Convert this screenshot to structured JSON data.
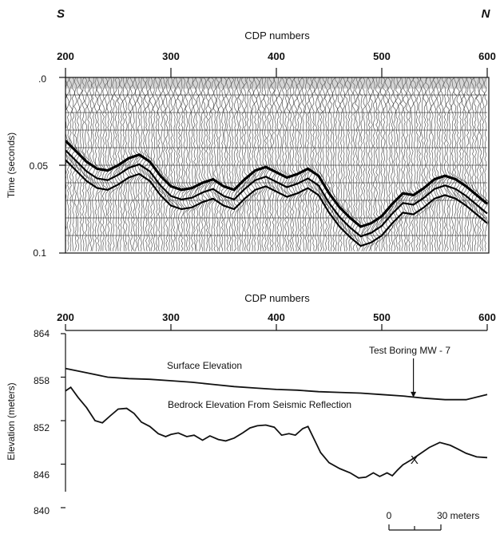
{
  "direction_left": "S",
  "direction_right": "N",
  "chart_data": [
    {
      "type": "heatmap",
      "xlabel": "CDP numbers",
      "ylabel": "Time (seconds)",
      "xlim": [
        200,
        600
      ],
      "ylim": [
        0.0,
        0.1
      ],
      "x_ticks": [
        "200",
        "300",
        "400",
        "500",
        "600"
      ],
      "y_ticks": [
        ".0",
        "0.05",
        "0.1"
      ],
      "reflector": {
        "x": [
          200,
          210,
          220,
          230,
          240,
          250,
          260,
          270,
          280,
          290,
          300,
          310,
          320,
          330,
          340,
          350,
          360,
          370,
          380,
          390,
          400,
          410,
          420,
          430,
          440,
          450,
          460,
          470,
          480,
          490,
          500,
          510,
          520,
          530,
          540,
          550,
          560,
          570,
          580,
          590,
          600
        ],
        "t": [
          0.036,
          0.042,
          0.048,
          0.052,
          0.053,
          0.05,
          0.046,
          0.044,
          0.048,
          0.056,
          0.062,
          0.064,
          0.063,
          0.06,
          0.058,
          0.062,
          0.064,
          0.058,
          0.053,
          0.051,
          0.054,
          0.057,
          0.055,
          0.052,
          0.056,
          0.066,
          0.074,
          0.08,
          0.085,
          0.083,
          0.079,
          0.072,
          0.066,
          0.067,
          0.063,
          0.058,
          0.056,
          0.058,
          0.062,
          0.067,
          0.072
        ]
      }
    },
    {
      "type": "line",
      "xlabel": "CDP numbers",
      "ylabel": "Elevation (meters)",
      "xlim": [
        200,
        600
      ],
      "ylim": [
        840,
        864
      ],
      "x_ticks": [
        "200",
        "300",
        "400",
        "500",
        "600"
      ],
      "y_ticks": [
        "864",
        "858",
        "852",
        "846",
        "840"
      ],
      "series": [
        {
          "name": "Surface Elevation",
          "x": [
            200,
            220,
            240,
            260,
            280,
            300,
            320,
            340,
            360,
            380,
            400,
            420,
            440,
            460,
            480,
            500,
            520,
            540,
            560,
            580,
            600
          ],
          "y": [
            859.2,
            858.6,
            858.0,
            857.8,
            857.7,
            857.5,
            857.3,
            857.0,
            856.7,
            856.5,
            856.3,
            856.2,
            856.0,
            855.9,
            855.8,
            855.6,
            855.4,
            855.1,
            854.9,
            854.9,
            855.6
          ]
        },
        {
          "name": "Bedrock Elevation From Seismic Reflection",
          "x": [
            200,
            205,
            212,
            220,
            228,
            235,
            242,
            250,
            258,
            265,
            272,
            280,
            288,
            295,
            300,
            307,
            315,
            322,
            330,
            337,
            345,
            352,
            360,
            368,
            375,
            382,
            390,
            398,
            405,
            412,
            418,
            425,
            430,
            436,
            442,
            450,
            460,
            470,
            478,
            485,
            492,
            498,
            505,
            510,
            515,
            520,
            528,
            535,
            545,
            555,
            565,
            572,
            580,
            590,
            600
          ],
          "y": [
            856.1,
            856.6,
            855.2,
            853.8,
            852.0,
            851.7,
            852.6,
            853.6,
            853.7,
            853.0,
            851.8,
            851.2,
            850.2,
            849.8,
            850.1,
            850.3,
            849.8,
            850.0,
            849.3,
            849.9,
            849.4,
            849.2,
            849.6,
            850.3,
            851.0,
            851.3,
            851.4,
            851.1,
            850.0,
            850.2,
            850.0,
            850.9,
            851.2,
            849.4,
            847.6,
            846.2,
            845.4,
            844.8,
            844.1,
            844.2,
            844.8,
            844.3,
            844.8,
            844.4,
            845.2,
            845.9,
            846.6,
            847.3,
            848.3,
            849.0,
            848.6,
            848.1,
            847.5,
            847.0,
            846.9
          ]
        }
      ],
      "annotations": {
        "test_boring": "Test Boring MW - 7",
        "test_boring_x": 530,
        "boring_mark": "X",
        "boring_mark_x": 531,
        "boring_mark_y": 846.6
      },
      "scale_bar": {
        "zero": "0",
        "label": "30 meters"
      }
    }
  ]
}
